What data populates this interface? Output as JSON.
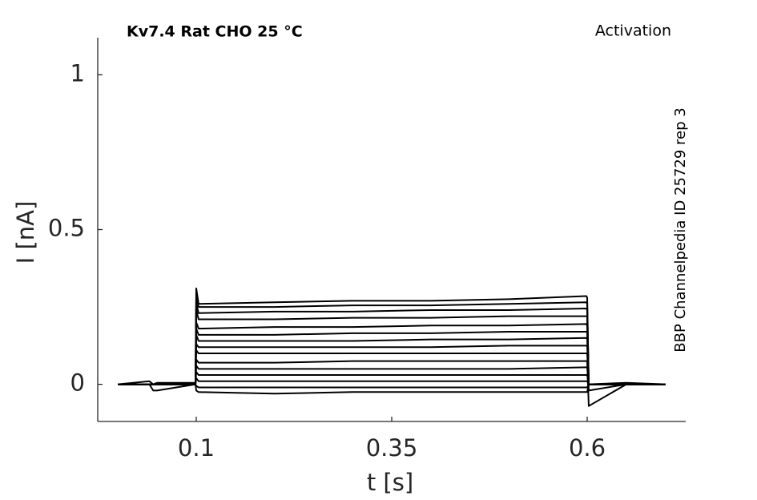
{
  "chart_data": {
    "type": "line",
    "title": "Kv7.4  Rat  CHO  25 °C",
    "subtitle": "Activation",
    "annotation": "BBP Channelpedia ID 25729 rep 3",
    "xlabel": "t [s]",
    "ylabel": "I [nA]",
    "xlim": [
      -0.026,
      0.726
    ],
    "ylim": [
      -0.12,
      1.12
    ],
    "xticks": [
      0.1,
      0.35,
      0.6
    ],
    "yticks": [
      0,
      0.5,
      1
    ],
    "grid": false,
    "x": [
      0,
      0.04,
      0.045,
      0.05,
      0.099,
      0.1,
      0.103,
      0.2,
      0.3,
      0.4,
      0.5,
      0.599,
      0.6,
      0.602,
      0.65,
      0.7
    ],
    "series": [
      {
        "color": "#000000",
        "values": [
          0,
          0.01,
          0,
          0.005,
          0.005,
          0.31,
          0.26,
          0.265,
          0.27,
          0.27,
          0.275,
          0.285,
          0.28,
          0,
          0.005,
          0
        ]
      },
      {
        "color": "#000000",
        "values": [
          0,
          0,
          0,
          0,
          0,
          0.28,
          0.25,
          0.25,
          0.255,
          0.255,
          0.26,
          0.265,
          0.26,
          0,
          0,
          0
        ]
      },
      {
        "color": "#000000",
        "values": [
          0,
          0,
          0,
          0,
          0,
          0.26,
          0.23,
          0.235,
          0.235,
          0.24,
          0.24,
          0.245,
          0.24,
          0,
          0,
          0
        ]
      },
      {
        "color": "#000000",
        "values": [
          0,
          0,
          0,
          0,
          0,
          0.24,
          0.21,
          0.21,
          0.215,
          0.215,
          0.22,
          0.22,
          0.22,
          -0.02,
          0,
          0
        ]
      },
      {
        "color": "#000000",
        "values": [
          0,
          0,
          0,
          0,
          0,
          0.2,
          0.18,
          0.185,
          0.185,
          0.19,
          0.19,
          0.195,
          0.19,
          0,
          0,
          0
        ]
      },
      {
        "color": "#000000",
        "values": [
          0,
          0,
          0,
          0,
          0,
          0.18,
          0.16,
          0.16,
          0.165,
          0.165,
          0.17,
          0.17,
          0.17,
          0,
          0,
          0
        ]
      },
      {
        "color": "#000000",
        "values": [
          0,
          0,
          0,
          0,
          0,
          0.16,
          0.14,
          0.14,
          0.14,
          0.145,
          0.145,
          0.15,
          0.15,
          0,
          0,
          0
        ]
      },
      {
        "color": "#000000",
        "values": [
          0,
          0,
          0,
          0,
          0,
          0.13,
          0.12,
          0.12,
          0.12,
          0.12,
          0.125,
          0.125,
          0.125,
          0,
          0,
          0
        ]
      },
      {
        "color": "#000000",
        "values": [
          0,
          0,
          0,
          0,
          0,
          0.11,
          0.1,
          0.1,
          0.1,
          0.1,
          0.1,
          0.1,
          0.1,
          0,
          0,
          0
        ]
      },
      {
        "color": "#000000",
        "values": [
          0,
          0,
          0,
          0,
          0,
          0.08,
          0.07,
          0.07,
          0.075,
          0.075,
          0.075,
          0.075,
          0.075,
          -0.07,
          0,
          0
        ]
      },
      {
        "color": "#000000",
        "values": [
          0,
          0,
          0,
          0,
          0,
          0.06,
          0.05,
          0.05,
          0.05,
          0.05,
          0.05,
          0.055,
          0.055,
          0,
          0,
          0
        ]
      },
      {
        "color": "#000000",
        "values": [
          0,
          0,
          0,
          0,
          0,
          0.04,
          0.03,
          0.03,
          0.03,
          0.03,
          0.03,
          0.03,
          0.03,
          0,
          0,
          0
        ]
      },
      {
        "color": "#000000",
        "values": [
          0,
          0,
          0,
          0,
          0,
          0.02,
          0.01,
          0.01,
          0.01,
          0.01,
          0.01,
          0.01,
          0.01,
          0,
          0,
          0
        ]
      },
      {
        "color": "#000000",
        "values": [
          0,
          0,
          -0.02,
          -0.02,
          0,
          -0.005,
          -0.01,
          -0.01,
          -0.01,
          -0.01,
          -0.01,
          -0.01,
          -0.01,
          0,
          0,
          0
        ]
      },
      {
        "color": "#000000",
        "values": [
          0,
          0,
          0,
          0,
          0,
          -0.02,
          -0.025,
          -0.03,
          -0.025,
          -0.025,
          -0.025,
          -0.025,
          -0.025,
          0,
          0,
          0
        ]
      }
    ]
  }
}
